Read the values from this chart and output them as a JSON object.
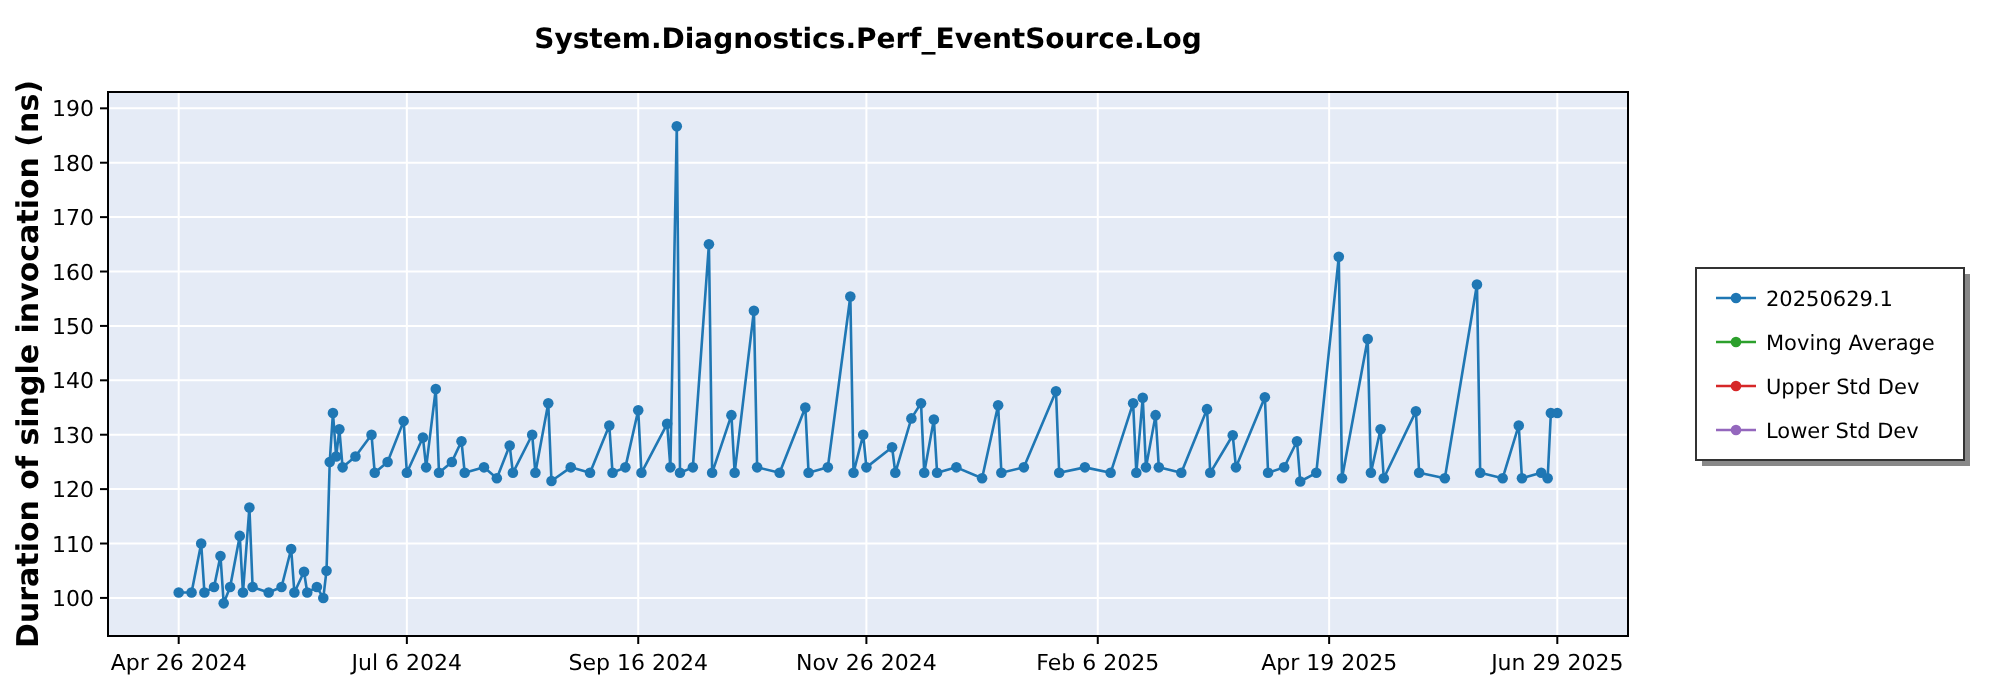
{
  "chart_data": {
    "type": "line",
    "title": "System.Diagnostics.Perf_EventSource.Log",
    "ylabel": "Duration of single invocation (ns)",
    "xlim": [
      "2024-04-04",
      "2025-07-21"
    ],
    "xticks": [
      {
        "value": "2024-04-26",
        "label": "Apr 26 2024"
      },
      {
        "value": "2024-07-06",
        "label": "Jul 6 2024"
      },
      {
        "value": "2024-09-16",
        "label": "Sep 16 2024"
      },
      {
        "value": "2024-11-26",
        "label": "Nov 26 2024"
      },
      {
        "value": "2025-02-06",
        "label": "Feb 6 2025"
      },
      {
        "value": "2025-04-19",
        "label": "Apr 19 2025"
      },
      {
        "value": "2025-06-29",
        "label": "Jun 29 2025"
      }
    ],
    "ylim": [
      93,
      193
    ],
    "yticks": [
      100,
      110,
      120,
      130,
      140,
      150,
      160,
      170,
      180,
      190
    ],
    "grid": true,
    "legend": "right",
    "marker": "circle",
    "line_style": "solid",
    "series": [
      {
        "name": "20250629.1",
        "color": "#1f77b4",
        "x": [
          "2024-04-26",
          "2024-04-30",
          "2024-05-03",
          "2024-05-04",
          "2024-05-07",
          "2024-05-09",
          "2024-05-10",
          "2024-05-12",
          "2024-05-15",
          "2024-05-16",
          "2024-05-18",
          "2024-05-19",
          "2024-05-24",
          "2024-05-28",
          "2024-05-31",
          "2024-06-01",
          "2024-06-04",
          "2024-06-05",
          "2024-06-08",
          "2024-06-10",
          "2024-06-11",
          "2024-06-12",
          "2024-06-13",
          "2024-06-14",
          "2024-06-15",
          "2024-06-16",
          "2024-06-20",
          "2024-06-25",
          "2024-06-26",
          "2024-06-30",
          "2024-07-05",
          "2024-07-06",
          "2024-07-11",
          "2024-07-12",
          "2024-07-15",
          "2024-07-16",
          "2024-07-20",
          "2024-07-23",
          "2024-07-24",
          "2024-07-30",
          "2024-08-03",
          "2024-08-07",
          "2024-08-08",
          "2024-08-14",
          "2024-08-15",
          "2024-08-19",
          "2024-08-20",
          "2024-08-26",
          "2024-09-01",
          "2024-09-07",
          "2024-09-08",
          "2024-09-12",
          "2024-09-16",
          "2024-09-17",
          "2024-09-25",
          "2024-09-26",
          "2024-09-28",
          "2024-09-29",
          "2024-10-03",
          "2024-10-08",
          "2024-10-09",
          "2024-10-15",
          "2024-10-16",
          "2024-10-22",
          "2024-10-23",
          "2024-10-30",
          "2024-11-07",
          "2024-11-08",
          "2024-11-14",
          "2024-11-21",
          "2024-11-22",
          "2024-11-25",
          "2024-11-26",
          "2024-12-04",
          "2024-12-05",
          "2024-12-10",
          "2024-12-13",
          "2024-12-14",
          "2024-12-17",
          "2024-12-18",
          "2024-12-24",
          "2025-01-01",
          "2025-01-06",
          "2025-01-07",
          "2025-01-14",
          "2025-01-24",
          "2025-01-25",
          "2025-02-02",
          "2025-02-10",
          "2025-02-17",
          "2025-02-18",
          "2025-02-20",
          "2025-02-21",
          "2025-02-24",
          "2025-02-25",
          "2025-03-04",
          "2025-03-12",
          "2025-03-13",
          "2025-03-20",
          "2025-03-21",
          "2025-03-30",
          "2025-03-31",
          "2025-04-05",
          "2025-04-09",
          "2025-04-10",
          "2025-04-15",
          "2025-04-22",
          "2025-04-23",
          "2025-05-01",
          "2025-05-02",
          "2025-05-05",
          "2025-05-06",
          "2025-05-16",
          "2025-05-17",
          "2025-05-25",
          "2025-06-04",
          "2025-06-05",
          "2025-06-12",
          "2025-06-17",
          "2025-06-18",
          "2025-06-24",
          "2025-06-26",
          "2025-06-27",
          "2025-06-29"
        ],
        "values": [
          101,
          101,
          110,
          101,
          102,
          107.7,
          99,
          102,
          111.4,
          101,
          116.6,
          102,
          101,
          102,
          109,
          101,
          104.8,
          101,
          102,
          100,
          105,
          125,
          134,
          126,
          131,
          124,
          126,
          130,
          123,
          125,
          132.5,
          123,
          129.5,
          124,
          138.4,
          123,
          125,
          128.8,
          123,
          124,
          122,
          128,
          123,
          130,
          123,
          135.8,
          121.5,
          124,
          123,
          131.7,
          123,
          124,
          134.5,
          123,
          132,
          124,
          186.7,
          123,
          124,
          165,
          123,
          133.6,
          123,
          152.8,
          124,
          123,
          135,
          123,
          124,
          155.4,
          123,
          130,
          124,
          127.7,
          123,
          133,
          135.8,
          123,
          132.8,
          123,
          124,
          122,
          135.4,
          123,
          124,
          138,
          123,
          124,
          123,
          135.8,
          123,
          136.8,
          124,
          133.6,
          124,
          123,
          134.7,
          123,
          129.9,
          124,
          136.9,
          123,
          124,
          128.8,
          121.4,
          123,
          162.7,
          122,
          147.6,
          123,
          131,
          122,
          134.3,
          123,
          122,
          157.6,
          123,
          122,
          131.7,
          122,
          123,
          122,
          134,
          134
        ]
      },
      {
        "name": "Moving Average",
        "color": "#2ca02c"
      },
      {
        "name": "Upper Std Dev",
        "color": "#d62728"
      },
      {
        "name": "Lower Std Dev",
        "color": "#9467bd"
      }
    ]
  }
}
